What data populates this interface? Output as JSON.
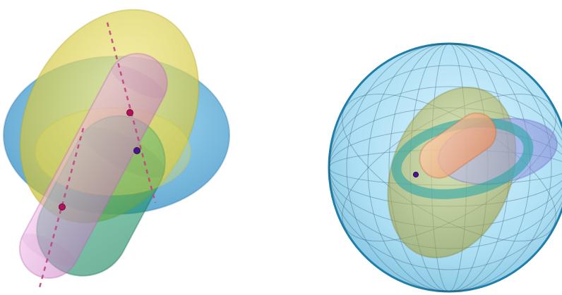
{
  "figure": {
    "panels": [
      {
        "id": "left",
        "description_shapes": [
          "blue-ellipsoid",
          "yellow-ellipsoid",
          "green-capsule",
          "pink-capsule"
        ],
        "colors": {
          "blue": "#3ea3d6",
          "yellow": "#d9cf45",
          "green": "#22a36b",
          "pink": "#e39ad6",
          "axis": "#c2457f",
          "point_magenta": "#b0125e",
          "point_purple": "#4a158f"
        }
      },
      {
        "id": "right",
        "description_shapes": [
          "outer-blue-shell",
          "olive-lobe",
          "teal-ring",
          "lavender-lobe",
          "orange-core"
        ],
        "colors": {
          "shell": "#8fd3ef",
          "shell_edge": "#1f7fa8",
          "olive": "#b8b24a",
          "teal": "#2ea6a6",
          "lavender": "#a7a7e6",
          "orange": "#f1a57a",
          "mesh": "#2a4f63"
        }
      }
    ]
  }
}
